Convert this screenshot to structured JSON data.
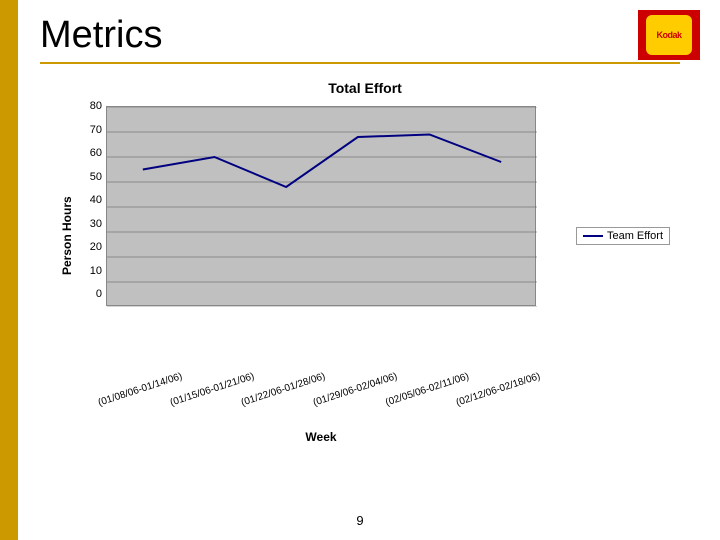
{
  "brand": {
    "name": "Kodak"
  },
  "slide": {
    "title": "Metrics",
    "page_number": "9"
  },
  "chart": {
    "type": "line",
    "title": "Total Effort",
    "ylabel": "Person Hours",
    "xlabel": "Week",
    "y_ticks": [
      0,
      10,
      20,
      30,
      40,
      50,
      60,
      70,
      80
    ],
    "ylim": [
      0,
      80
    ],
    "categories": [
      "(01/08/06-01/14/06)",
      "(01/15/06-01/21/06)",
      "(01/22/06-01/28/06)",
      "(01/29/06-02/04/06)",
      "(02/05/06-02/11/06)",
      "(02/12/06-02/18/06)"
    ],
    "series": [
      {
        "name": "Team Effort",
        "color": "#000080",
        "values": [
          55,
          60,
          48,
          68,
          69,
          58
        ]
      }
    ],
    "plot_bg": "#c0c0c0",
    "line_width": 2,
    "grid_color": "#555555",
    "title_fontsize": 14,
    "label_fontsize": 12,
    "tick_fontsize": 11
  },
  "colors": {
    "accent_bar": "#cc9900",
    "logo_bg": "#cc0000",
    "logo_inner": "#ffcc00"
  }
}
